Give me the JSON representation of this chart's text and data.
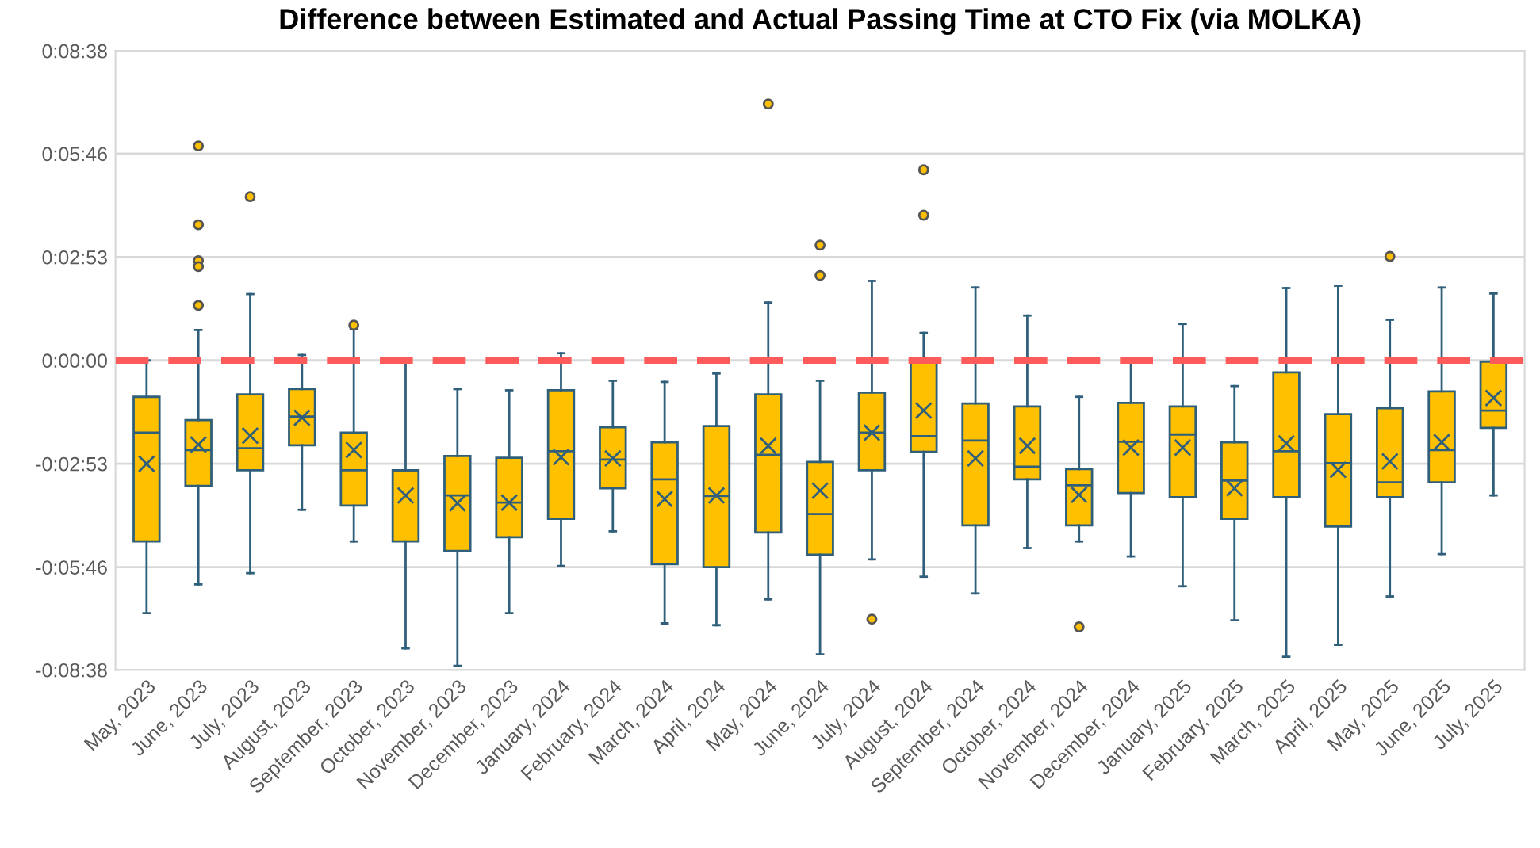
{
  "chart_data": {
    "type": "box",
    "title": "Difference between Estimated and Actual Passing Time at CTO Fix (via MOLKA)",
    "categories": [
      "May, 2023",
      "June, 2023",
      "July, 2023",
      "August, 2023",
      "September, 2023",
      "October, 2023",
      "November, 2023",
      "December, 2023",
      "January, 2024",
      "February, 2024",
      "March, 2024",
      "April, 2024",
      "May, 2024",
      "June, 2024",
      "July, 2024",
      "August, 2024",
      "September, 2024",
      "October, 2024",
      "November, 2024",
      "December, 2024",
      "January, 2025",
      "February, 2025",
      "March, 2025",
      "April, 2025",
      "May, 2025",
      "June, 2025",
      "July, 2025"
    ],
    "color": "#ffc000",
    "boxes": [
      {
        "low": -423,
        "q1": -303,
        "median": -121,
        "q3": -61,
        "high": 0,
        "mean": -173
      },
      {
        "low": -375,
        "q1": -210,
        "median": -150,
        "q3": -100,
        "high": 51,
        "mean": -141,
        "outliers": [
          359,
          227,
          167,
          157,
          92
        ]
      },
      {
        "low": -356,
        "q1": -184,
        "median": -147,
        "q3": -57,
        "high": 111,
        "mean": -126,
        "outliers": [
          274
        ]
      },
      {
        "low": -250,
        "q1": -142,
        "median": -94,
        "q3": -48,
        "high": 9,
        "mean": -96
      },
      {
        "low": -303,
        "q1": -243,
        "median": -184,
        "q3": -121,
        "high": 52,
        "mean": -150,
        "outliers": [
          59
        ]
      },
      {
        "low": -482,
        "q1": -303,
        "median": -184,
        "q3": -184,
        "high": 0,
        "mean": -226
      },
      {
        "low": -511,
        "q1": -319,
        "median": -226,
        "q3": -160,
        "high": -48,
        "mean": -239
      },
      {
        "low": -423,
        "q1": -296,
        "median": -238,
        "q3": -163,
        "high": -50,
        "mean": -238
      },
      {
        "low": -344,
        "q1": -265,
        "median": -152,
        "q3": -50,
        "high": 12,
        "mean": -162
      },
      {
        "low": -286,
        "q1": -214,
        "median": -166,
        "q3": -112,
        "high": -34,
        "mean": -164
      },
      {
        "low": -440,
        "q1": -341,
        "median": -199,
        "q3": -137,
        "high": -36,
        "mean": -232
      },
      {
        "low": -443,
        "q1": -346,
        "median": -227,
        "q3": -110,
        "high": -22,
        "mean": -226
      },
      {
        "low": -400,
        "q1": -288,
        "median": -158,
        "q3": -57,
        "high": 97,
        "mean": -143,
        "outliers": [
          429
        ]
      },
      {
        "low": -492,
        "q1": -325,
        "median": -257,
        "q3": -170,
        "high": -34,
        "mean": -218,
        "outliers": [
          193,
          142
        ]
      },
      {
        "low": -333,
        "q1": -184,
        "median": -121,
        "q3": -54,
        "high": 133,
        "mean": -121,
        "outliers": [
          -433
        ]
      },
      {
        "low": -362,
        "q1": -153,
        "median": -127,
        "q3": 2,
        "high": 46,
        "mean": -84,
        "outliers": [
          319,
          243
        ]
      },
      {
        "low": -390,
        "q1": -276,
        "median": -134,
        "q3": -72,
        "high": 122,
        "mean": -164
      },
      {
        "low": -314,
        "q1": -199,
        "median": -178,
        "q3": -77,
        "high": 75,
        "mean": -143
      },
      {
        "low": -303,
        "q1": -276,
        "median": -209,
        "q3": -182,
        "high": -61,
        "mean": -225,
        "outliers": [
          -446
        ]
      },
      {
        "low": -328,
        "q1": -222,
        "median": -136,
        "q3": -71,
        "high": 0,
        "mean": -146
      },
      {
        "low": -378,
        "q1": -229,
        "median": -124,
        "q3": -77,
        "high": 61,
        "mean": -146
      },
      {
        "low": -435,
        "q1": -265,
        "median": -201,
        "q3": -137,
        "high": -43,
        "mean": -214
      },
      {
        "low": -496,
        "q1": -229,
        "median": -152,
        "q3": -20,
        "high": 121,
        "mean": -139
      },
      {
        "low": -476,
        "q1": -278,
        "median": -172,
        "q3": -90,
        "high": 125,
        "mean": -183
      },
      {
        "low": -395,
        "q1": -229,
        "median": -204,
        "q3": -80,
        "high": 68,
        "mean": -169,
        "outliers": [
          174
        ]
      },
      {
        "low": -324,
        "q1": -204,
        "median": -150,
        "q3": -52,
        "high": 122,
        "mean": -137
      },
      {
        "low": -226,
        "q1": -113,
        "median": -84,
        "q3": -2,
        "high": 112,
        "mean": -63
      }
    ],
    "ylim": [
      -518,
      518
    ],
    "yticks": [
      {
        "value": -518,
        "label": "-0:08:38"
      },
      {
        "value": -346,
        "label": "-0:05:46"
      },
      {
        "value": -173,
        "label": "-0:02:53"
      },
      {
        "value": 0,
        "label": "0:00:00"
      },
      {
        "value": 173,
        "label": "0:02:53"
      },
      {
        "value": 346,
        "label": "0:05:46"
      },
      {
        "value": 518,
        "label": "0:08:38"
      }
    ],
    "grid": "y",
    "marker": "cross",
    "ref_lines": [
      {
        "axis": "y",
        "value": 0,
        "color": "#ff5b5b",
        "line_style": "dashed"
      }
    ]
  }
}
